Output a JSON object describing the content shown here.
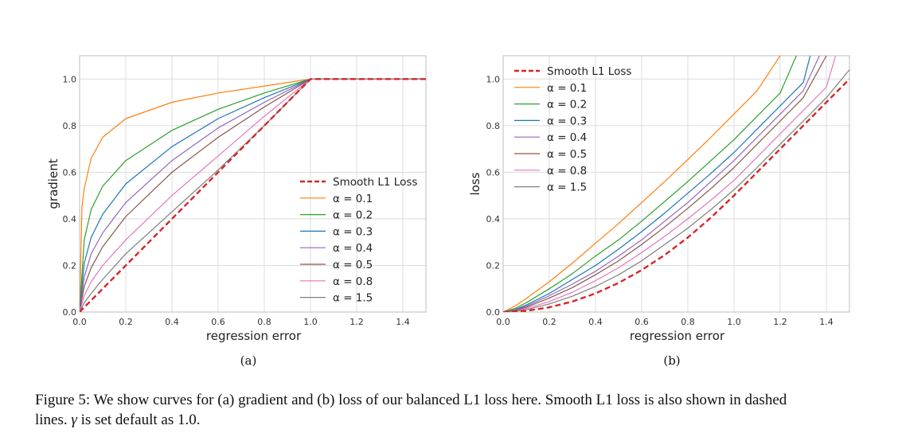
{
  "chart_data": [
    {
      "type": "line",
      "subfigure_label": "(a)",
      "xlabel": "regression error",
      "ylabel": "gradient",
      "xlim": [
        0,
        1.5
      ],
      "ylim": [
        0,
        1.1
      ],
      "xticks": [
        "0.0",
        "0.2",
        "0.4",
        "0.6",
        "0.8",
        "1.0",
        "1.2",
        "1.4"
      ],
      "yticks": [
        "0.0",
        "0.2",
        "0.4",
        "0.6",
        "0.8",
        "1.0"
      ],
      "grid": true,
      "legend_position": "center-right",
      "legend": [
        "Smooth L1 Loss",
        "α = 0.1",
        "α = 0.2",
        "α = 0.3",
        "α = 0.4",
        "α = 0.5",
        "α = 0.8",
        "α = 1.5"
      ],
      "series": [
        {
          "name": "Smooth L1 Loss",
          "color": "#d62728",
          "dashed": true,
          "alpha": null,
          "x": [
            0,
            1.0,
            1.5
          ],
          "y": [
            0,
            1.0,
            1.0
          ]
        },
        {
          "name": "α = 0.1",
          "color": "#ff7f0e",
          "alpha": 0.1,
          "x": [
            0,
            0.01,
            0.02,
            0.05,
            0.1,
            0.2,
            0.4,
            0.6,
            0.8,
            1.0,
            1.5
          ],
          "y": [
            0,
            0.45,
            0.53,
            0.66,
            0.75,
            0.83,
            0.9,
            0.94,
            0.97,
            1.0,
            1.0
          ]
        },
        {
          "name": "α = 0.2",
          "color": "#2ca02c",
          "alpha": 0.2,
          "x": [
            0,
            0.02,
            0.05,
            0.1,
            0.2,
            0.4,
            0.6,
            0.8,
            1.0,
            1.5
          ],
          "y": [
            0,
            0.31,
            0.44,
            0.54,
            0.65,
            0.78,
            0.87,
            0.94,
            1.0,
            1.0
          ]
        },
        {
          "name": "α = 0.3",
          "color": "#1f77b4",
          "alpha": 0.3,
          "x": [
            0,
            0.02,
            0.05,
            0.1,
            0.2,
            0.4,
            0.6,
            0.8,
            1.0,
            1.5
          ],
          "y": [
            0,
            0.21,
            0.32,
            0.42,
            0.55,
            0.71,
            0.83,
            0.92,
            1.0,
            1.0
          ]
        },
        {
          "name": "α = 0.4",
          "color": "#9467bd",
          "alpha": 0.4,
          "x": [
            0,
            0.02,
            0.05,
            0.1,
            0.2,
            0.4,
            0.6,
            0.8,
            1.0,
            1.5
          ],
          "y": [
            0,
            0.15,
            0.25,
            0.34,
            0.47,
            0.65,
            0.79,
            0.9,
            1.0,
            1.0
          ]
        },
        {
          "name": "α = 0.5",
          "color": "#8c564b",
          "alpha": 0.5,
          "x": [
            0,
            0.02,
            0.05,
            0.1,
            0.2,
            0.4,
            0.6,
            0.8,
            1.0,
            1.5
          ],
          "y": [
            0,
            0.11,
            0.19,
            0.28,
            0.41,
            0.6,
            0.75,
            0.88,
            1.0,
            1.0
          ]
        },
        {
          "name": "α = 0.8",
          "color": "#e377c2",
          "alpha": 0.8,
          "x": [
            0,
            0.02,
            0.05,
            0.1,
            0.2,
            0.4,
            0.6,
            0.8,
            1.0,
            1.5
          ],
          "y": [
            0,
            0.07,
            0.13,
            0.2,
            0.31,
            0.5,
            0.67,
            0.84,
            1.0,
            1.0
          ]
        },
        {
          "name": "α = 1.5",
          "color": "#7f7f7f",
          "alpha": 1.5,
          "x": [
            0,
            0.02,
            0.05,
            0.1,
            0.2,
            0.4,
            0.6,
            0.8,
            1.0,
            1.5
          ],
          "y": [
            0,
            0.04,
            0.08,
            0.14,
            0.25,
            0.43,
            0.61,
            0.8,
            1.0,
            1.0
          ]
        }
      ]
    },
    {
      "type": "line",
      "subfigure_label": "(b)",
      "xlabel": "regression error",
      "ylabel": "loss",
      "xlim": [
        0,
        1.5
      ],
      "ylim": [
        0,
        1.1
      ],
      "xticks": [
        "0.0",
        "0.2",
        "0.4",
        "0.6",
        "0.8",
        "1.0",
        "1.2",
        "1.4"
      ],
      "yticks": [
        "0.0",
        "0.2",
        "0.4",
        "0.6",
        "0.8",
        "1.0"
      ],
      "grid": true,
      "legend_position": "upper-left",
      "legend": [
        "Smooth L1 Loss",
        "α = 0.1",
        "α = 0.2",
        "α = 0.3",
        "α = 0.4",
        "α = 0.5",
        "α = 0.8",
        "α = 1.5"
      ],
      "series": [
        {
          "name": "Smooth L1 Loss",
          "color": "#d62728",
          "dashed": true,
          "x": [
            0,
            0.1,
            0.2,
            0.3,
            0.4,
            0.5,
            0.6,
            0.7,
            0.8,
            0.9,
            1.0,
            1.1,
            1.2,
            1.3,
            1.4,
            1.5
          ],
          "y": [
            0,
            0.005,
            0.02,
            0.045,
            0.08,
            0.125,
            0.18,
            0.245,
            0.32,
            0.405,
            0.5,
            0.6,
            0.7,
            0.8,
            0.9,
            1.0
          ]
        },
        {
          "name": "α = 0.1",
          "color": "#ff7f0e",
          "x": [
            0,
            0.05,
            0.1,
            0.2,
            0.3,
            0.4,
            0.5,
            0.6,
            0.7,
            0.8,
            0.9,
            1.0,
            1.1,
            1.2
          ],
          "y": [
            0,
            0.025,
            0.058,
            0.13,
            0.21,
            0.295,
            0.38,
            0.47,
            0.56,
            0.655,
            0.75,
            0.85,
            0.95,
            1.1
          ]
        },
        {
          "name": "α = 0.2",
          "color": "#2ca02c",
          "x": [
            0,
            0.05,
            0.1,
            0.2,
            0.3,
            0.4,
            0.5,
            0.6,
            0.7,
            0.8,
            0.9,
            1.0,
            1.1,
            1.2,
            1.27
          ],
          "y": [
            0,
            0.015,
            0.04,
            0.1,
            0.165,
            0.24,
            0.31,
            0.39,
            0.475,
            0.56,
            0.65,
            0.74,
            0.84,
            0.94,
            1.1
          ]
        },
        {
          "name": "α = 0.3",
          "color": "#1f77b4",
          "x": [
            0,
            0.05,
            0.1,
            0.2,
            0.3,
            0.4,
            0.5,
            0.6,
            0.7,
            0.8,
            0.9,
            1.0,
            1.1,
            1.2,
            1.3,
            1.33
          ],
          "y": [
            0,
            0.01,
            0.03,
            0.08,
            0.14,
            0.2,
            0.27,
            0.345,
            0.425,
            0.51,
            0.595,
            0.685,
            0.785,
            0.885,
            0.985,
            1.1
          ]
        },
        {
          "name": "α = 0.4",
          "color": "#9467bd",
          "x": [
            0,
            0.05,
            0.1,
            0.2,
            0.3,
            0.4,
            0.5,
            0.6,
            0.7,
            0.8,
            0.9,
            1.0,
            1.1,
            1.2,
            1.3,
            1.37
          ],
          "y": [
            0,
            0.008,
            0.025,
            0.07,
            0.12,
            0.175,
            0.24,
            0.31,
            0.39,
            0.47,
            0.56,
            0.65,
            0.75,
            0.85,
            0.95,
            1.1
          ]
        },
        {
          "name": "α = 0.5",
          "color": "#8c564b",
          "x": [
            0,
            0.05,
            0.1,
            0.2,
            0.3,
            0.4,
            0.5,
            0.6,
            0.7,
            0.8,
            0.9,
            1.0,
            1.1,
            1.2,
            1.3,
            1.4
          ],
          "y": [
            0,
            0.006,
            0.02,
            0.06,
            0.105,
            0.16,
            0.22,
            0.29,
            0.365,
            0.445,
            0.53,
            0.62,
            0.72,
            0.82,
            0.92,
            1.1
          ]
        },
        {
          "name": "α = 0.8",
          "color": "#e377c2",
          "x": [
            0,
            0.05,
            0.1,
            0.2,
            0.3,
            0.4,
            0.5,
            0.6,
            0.7,
            0.8,
            0.9,
            1.0,
            1.1,
            1.2,
            1.3,
            1.4,
            1.44
          ],
          "y": [
            0,
            0.004,
            0.015,
            0.045,
            0.085,
            0.135,
            0.19,
            0.255,
            0.325,
            0.4,
            0.48,
            0.565,
            0.665,
            0.765,
            0.865,
            0.965,
            1.1
          ]
        },
        {
          "name": "α = 1.5",
          "color": "#7f7f7f",
          "x": [
            0,
            0.05,
            0.1,
            0.2,
            0.3,
            0.4,
            0.5,
            0.6,
            0.7,
            0.8,
            0.9,
            1.0,
            1.1,
            1.2,
            1.3,
            1.4,
            1.5
          ],
          "y": [
            0,
            0.003,
            0.01,
            0.035,
            0.068,
            0.11,
            0.16,
            0.22,
            0.29,
            0.36,
            0.44,
            0.525,
            0.62,
            0.72,
            0.82,
            0.92,
            1.04
          ]
        }
      ]
    }
  ],
  "caption": {
    "text_line1": "Figure 5: We show curves for (a) gradient and (b) loss of our balanced L1 loss here. Smooth L1 loss is also shown in dashed",
    "text_line2_start": "lines. ",
    "gamma_symbol": "γ",
    "text_line2_end": " is set default as 1.0."
  }
}
